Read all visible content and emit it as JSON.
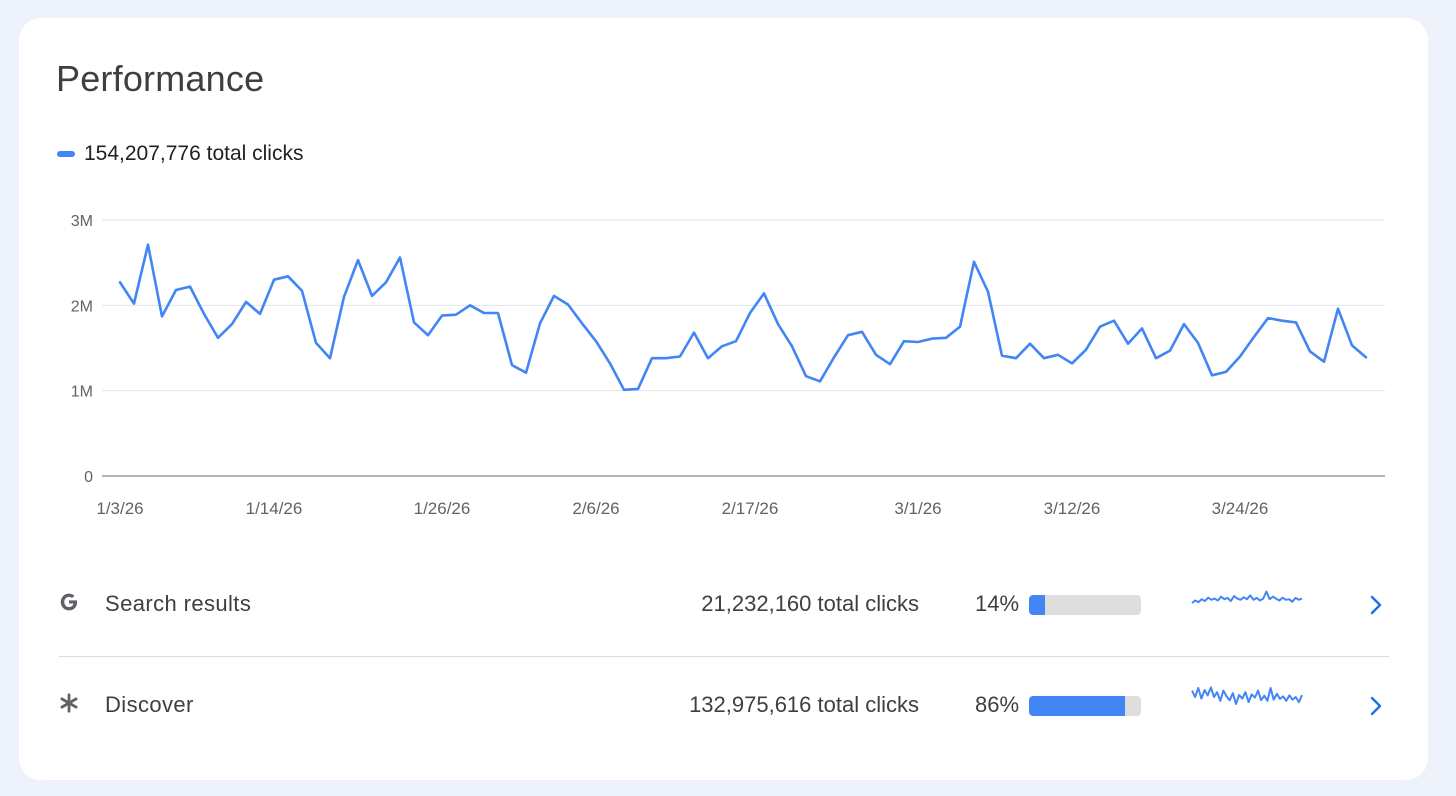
{
  "header": {
    "title": "Performance"
  },
  "legend": {
    "label": "154,207,776 total clicks",
    "color": "#4285f4"
  },
  "chart_data": {
    "type": "line",
    "ylim": [
      0,
      3000000
    ],
    "y_ticks": [
      "0",
      "1M",
      "2M",
      "3M"
    ],
    "x_tick_labels": [
      "1/3/26",
      "1/14/26",
      "1/26/26",
      "2/6/26",
      "2/17/26",
      "3/1/26",
      "3/12/26",
      "3/24/26"
    ],
    "x_tick_indices": [
      0,
      11,
      23,
      34,
      45,
      57,
      68,
      80
    ],
    "grid": true,
    "series": [
      {
        "color": "#4285f4",
        "values": [
          2270000,
          2020000,
          2710000,
          1870000,
          2180000,
          2220000,
          1900000,
          1620000,
          1780000,
          2040000,
          1900000,
          2300000,
          2340000,
          2170000,
          1560000,
          1380000,
          2100000,
          2530000,
          2110000,
          2270000,
          2560000,
          1800000,
          1650000,
          1880000,
          1890000,
          2000000,
          1910000,
          1910000,
          1300000,
          1210000,
          1790000,
          2110000,
          2010000,
          1790000,
          1580000,
          1320000,
          1010000,
          1020000,
          1380000,
          1380000,
          1400000,
          1680000,
          1380000,
          1520000,
          1580000,
          1910000,
          2140000,
          1780000,
          1520000,
          1170000,
          1110000,
          1390000,
          1650000,
          1690000,
          1420000,
          1310000,
          1580000,
          1570000,
          1610000,
          1620000,
          1750000,
          2510000,
          2160000,
          1410000,
          1380000,
          1550000,
          1380000,
          1420000,
          1320000,
          1480000,
          1750000,
          1820000,
          1550000,
          1730000,
          1380000,
          1470000,
          1780000,
          1560000,
          1180000,
          1220000,
          1400000,
          1630000,
          1850000,
          1820000,
          1800000,
          1460000,
          1340000,
          1960000,
          1530000,
          1390000
        ]
      }
    ]
  },
  "sources": [
    {
      "name": "Search results",
      "icon": "google-g-icon",
      "clicks": "21,232,160 total clicks",
      "percent_label": "14%",
      "percent": 14,
      "spark": [
        0.72,
        0.64,
        0.69,
        0.6,
        0.66,
        0.55,
        0.62,
        0.58,
        0.64,
        0.52,
        0.6,
        0.56,
        0.66,
        0.5,
        0.58,
        0.62,
        0.54,
        0.6,
        0.48,
        0.62,
        0.56,
        0.64,
        0.58,
        0.36,
        0.6,
        0.52,
        0.58,
        0.64,
        0.55,
        0.62,
        0.6,
        0.68,
        0.56,
        0.62,
        0.58
      ]
    },
    {
      "name": "Discover",
      "icon": "asterisk-icon",
      "clicks": "132,975,616 total clicks",
      "percent_label": "86%",
      "percent": 86,
      "spark": [
        0.3,
        0.5,
        0.22,
        0.55,
        0.28,
        0.45,
        0.2,
        0.5,
        0.35,
        0.62,
        0.3,
        0.48,
        0.6,
        0.38,
        0.72,
        0.44,
        0.55,
        0.35,
        0.66,
        0.42,
        0.52,
        0.3,
        0.6,
        0.46,
        0.62,
        0.22,
        0.58,
        0.4,
        0.56,
        0.48,
        0.62,
        0.45,
        0.58,
        0.5,
        0.66,
        0.44
      ]
    }
  ]
}
